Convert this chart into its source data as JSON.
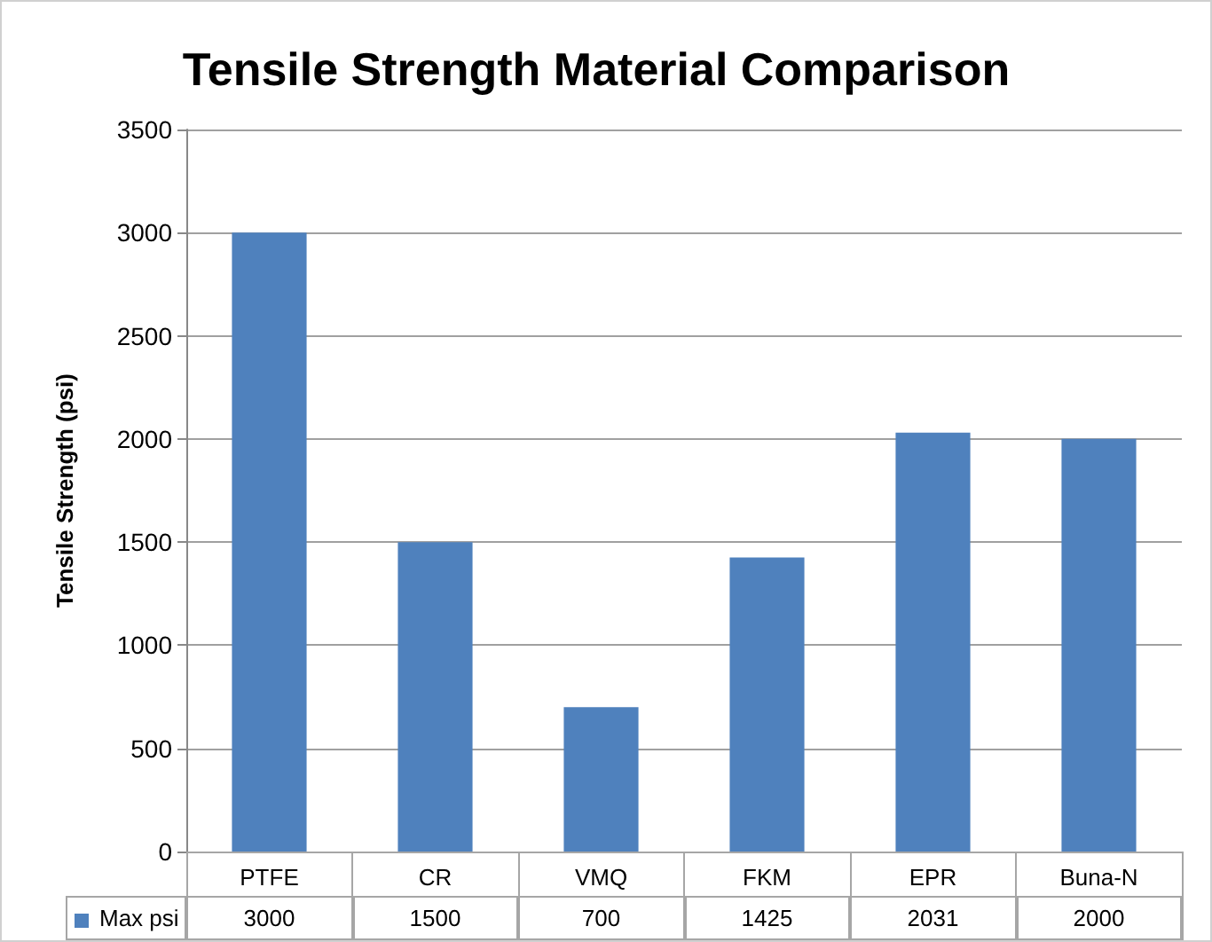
{
  "chart_data": {
    "type": "bar",
    "title": "Tensile Strength Material Comparison",
    "ylabel": "Tensile Strength (psi)",
    "categories": [
      "PTFE",
      "CR",
      "VMQ",
      "FKM",
      "EPR",
      "Buna-N"
    ],
    "series": [
      {
        "name": "Max psi",
        "color": "#4f81bd",
        "values": [
          3000,
          1500,
          700,
          1425,
          2031,
          2000
        ]
      }
    ],
    "ylim": [
      0,
      3500
    ],
    "yticks": [
      0,
      500,
      1000,
      1500,
      2000,
      2500,
      3000,
      3500
    ],
    "grid": "y",
    "legend": "bottom",
    "data_labels": true
  }
}
